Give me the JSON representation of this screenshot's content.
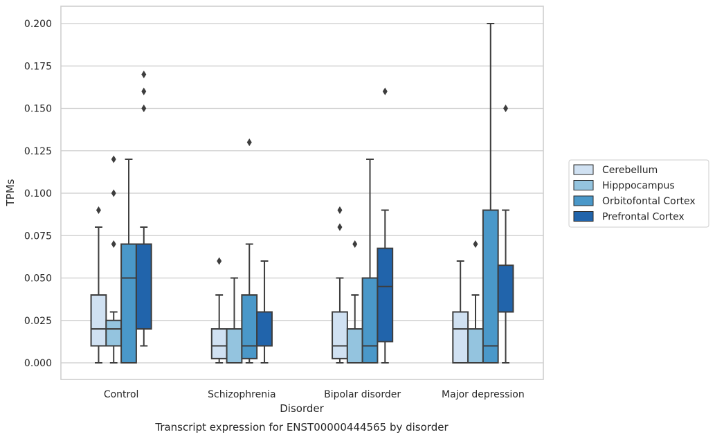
{
  "chart_data": {
    "type": "box",
    "title": "Transcript expression for ENST00000444565 by disorder",
    "xlabel": "Disorder",
    "ylabel": "TPMs",
    "ylim": [
      -0.01,
      0.21
    ],
    "yticks": [
      "0.000",
      "0.025",
      "0.050",
      "0.075",
      "0.100",
      "0.125",
      "0.150",
      "0.175",
      "0.200"
    ],
    "categories": [
      "Control",
      "Schizophrenia",
      "Bipolar disorder",
      "Major depression"
    ],
    "grid": "horizontal",
    "legend_position": "right",
    "series": [
      {
        "name": "Cerebellum",
        "color": "#d0e1f2",
        "boxes": [
          {
            "whislo": 0.0,
            "q1": 0.01,
            "med": 0.02,
            "q3": 0.04,
            "whishi": 0.08,
            "fliers": [
              0.09
            ]
          },
          {
            "whislo": 0.0,
            "q1": 0.0025,
            "med": 0.01,
            "q3": 0.02,
            "whishi": 0.04,
            "fliers": [
              0.06
            ]
          },
          {
            "whislo": 0.0,
            "q1": 0.0025,
            "med": 0.01,
            "q3": 0.03,
            "whishi": 0.05,
            "fliers": [
              0.08,
              0.09
            ]
          },
          {
            "whislo": 0.0,
            "q1": 0.0,
            "med": 0.02,
            "q3": 0.03,
            "whishi": 0.06,
            "fliers": []
          }
        ]
      },
      {
        "name": "Hipppocampus",
        "color": "#94c4df",
        "boxes": [
          {
            "whislo": 0.0,
            "q1": 0.01,
            "med": 0.02,
            "q3": 0.025,
            "whishi": 0.03,
            "fliers": [
              0.07,
              0.1,
              0.12
            ]
          },
          {
            "whislo": 0.0,
            "q1": 0.0,
            "med": 0.02,
            "q3": 0.02,
            "whishi": 0.05,
            "fliers": []
          },
          {
            "whislo": 0.0,
            "q1": 0.0,
            "med": 0.02,
            "q3": 0.02,
            "whishi": 0.04,
            "fliers": [
              0.07
            ]
          },
          {
            "whislo": 0.0,
            "q1": 0.0,
            "med": 0.02,
            "q3": 0.02,
            "whishi": 0.04,
            "fliers": [
              0.07
            ]
          }
        ]
      },
      {
        "name": "Orbitofontal Cortex",
        "color": "#4a98c9",
        "boxes": [
          {
            "whislo": 0.0,
            "q1": 0.0,
            "med": 0.05,
            "q3": 0.07,
            "whishi": 0.12,
            "fliers": []
          },
          {
            "whislo": 0.0,
            "q1": 0.0025,
            "med": 0.01,
            "q3": 0.04,
            "whishi": 0.07,
            "fliers": [
              0.13
            ]
          },
          {
            "whislo": 0.0,
            "q1": 0.0,
            "med": 0.01,
            "q3": 0.05,
            "whishi": 0.12,
            "fliers": []
          },
          {
            "whislo": 0.0,
            "q1": 0.0,
            "med": 0.01,
            "q3": 0.09,
            "whishi": 0.2,
            "fliers": []
          }
        ]
      },
      {
        "name": "Prefrontal Cortex",
        "color": "#2164ab",
        "boxes": [
          {
            "whislo": 0.01,
            "q1": 0.02,
            "med": 0.07,
            "q3": 0.07,
            "whishi": 0.08,
            "fliers": [
              0.15,
              0.16,
              0.17
            ]
          },
          {
            "whislo": 0.0,
            "q1": 0.01,
            "med": 0.03,
            "q3": 0.03,
            "whishi": 0.06,
            "fliers": []
          },
          {
            "whislo": 0.0,
            "q1": 0.0125,
            "med": 0.045,
            "q3": 0.0675,
            "whishi": 0.09,
            "fliers": [
              0.16
            ]
          },
          {
            "whislo": 0.0,
            "q1": 0.03,
            "med": 0.03,
            "q3": 0.0575,
            "whishi": 0.09,
            "fliers": [
              0.15
            ]
          }
        ]
      }
    ]
  }
}
